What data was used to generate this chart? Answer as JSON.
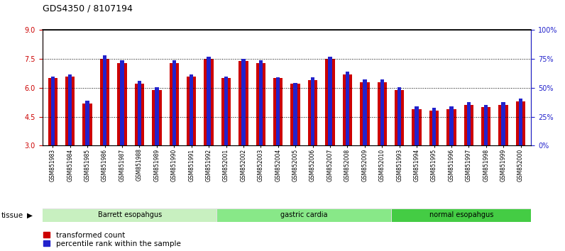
{
  "title": "GDS4350 / 8107194",
  "samples": [
    "GSM851983",
    "GSM851984",
    "GSM851985",
    "GSM851986",
    "GSM851987",
    "GSM851988",
    "GSM851989",
    "GSM851990",
    "GSM851991",
    "GSM851992",
    "GSM852001",
    "GSM852002",
    "GSM852003",
    "GSM852004",
    "GSM852005",
    "GSM852006",
    "GSM852007",
    "GSM852008",
    "GSM852009",
    "GSM852010",
    "GSM851993",
    "GSM851994",
    "GSM851995",
    "GSM851996",
    "GSM851997",
    "GSM851998",
    "GSM851999",
    "GSM852000"
  ],
  "red_values": [
    6.5,
    6.6,
    5.2,
    7.5,
    7.3,
    6.2,
    5.9,
    7.3,
    6.6,
    7.5,
    6.5,
    7.4,
    7.3,
    6.5,
    6.2,
    6.4,
    7.5,
    6.7,
    6.3,
    6.3,
    5.9,
    4.9,
    4.8,
    4.9,
    5.1,
    5.0,
    5.1,
    5.3
  ],
  "blue_values": [
    6.6,
    6.7,
    5.35,
    7.7,
    7.45,
    6.35,
    6.05,
    7.45,
    6.7,
    7.6,
    6.6,
    7.5,
    7.45,
    6.55,
    6.25,
    6.55,
    7.6,
    6.85,
    6.45,
    6.45,
    6.05,
    5.05,
    4.95,
    5.05,
    5.25,
    5.1,
    5.25,
    5.45
  ],
  "groups": [
    {
      "label": "Barrett esopahgus",
      "start": 0,
      "end": 10,
      "color": "#c8f0c0"
    },
    {
      "label": "gastric cardia",
      "start": 10,
      "end": 20,
      "color": "#88e888"
    },
    {
      "label": "normal esopahgus",
      "start": 20,
      "end": 28,
      "color": "#44cc44"
    }
  ],
  "ylim_left": [
    3,
    9
  ],
  "ylim_right": [
    0,
    100
  ],
  "yticks_left": [
    3,
    4.5,
    6,
    7.5,
    9
  ],
  "yticks_right": [
    0,
    25,
    50,
    75,
    100
  ],
  "red_color": "#cc0000",
  "blue_color": "#2222cc",
  "title_fontsize": 9,
  "tick_fontsize": 7,
  "label_fontsize": 8
}
